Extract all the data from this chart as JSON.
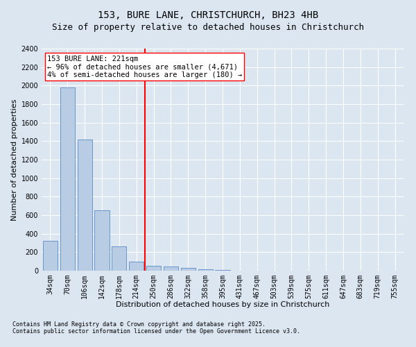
{
  "title1": "153, BURE LANE, CHRISTCHURCH, BH23 4HB",
  "title2": "Size of property relative to detached houses in Christchurch",
  "xlabel": "Distribution of detached houses by size in Christchurch",
  "ylabel": "Number of detached properties",
  "categories": [
    "34sqm",
    "70sqm",
    "106sqm",
    "142sqm",
    "178sqm",
    "214sqm",
    "250sqm",
    "286sqm",
    "322sqm",
    "358sqm",
    "395sqm",
    "431sqm",
    "467sqm",
    "503sqm",
    "539sqm",
    "575sqm",
    "611sqm",
    "647sqm",
    "683sqm",
    "719sqm",
    "755sqm"
  ],
  "values": [
    320,
    1980,
    1420,
    650,
    260,
    95,
    55,
    45,
    30,
    15,
    8,
    3,
    2,
    1,
    1,
    0,
    0,
    0,
    0,
    0,
    0
  ],
  "bar_color": "#b8cce4",
  "bar_edge_color": "#5b8bc7",
  "bg_color": "#dce6f1",
  "grid_color": "#ffffff",
  "vline_x": 5.5,
  "vline_color": "red",
  "annotation_text": "153 BURE LANE: 221sqm\n← 96% of detached houses are smaller (4,671)\n4% of semi-detached houses are larger (180) →",
  "annotation_box_color": "white",
  "annotation_box_edge": "red",
  "ylim": [
    0,
    2400
  ],
  "yticks": [
    0,
    200,
    400,
    600,
    800,
    1000,
    1200,
    1400,
    1600,
    1800,
    2000,
    2200,
    2400
  ],
  "footnote1": "Contains HM Land Registry data © Crown copyright and database right 2025.",
  "footnote2": "Contains public sector information licensed under the Open Government Licence v3.0.",
  "title_fontsize": 10,
  "subtitle_fontsize": 9,
  "axis_label_fontsize": 8,
  "tick_fontsize": 7,
  "annotation_fontsize": 7.5,
  "footnote_fontsize": 6
}
